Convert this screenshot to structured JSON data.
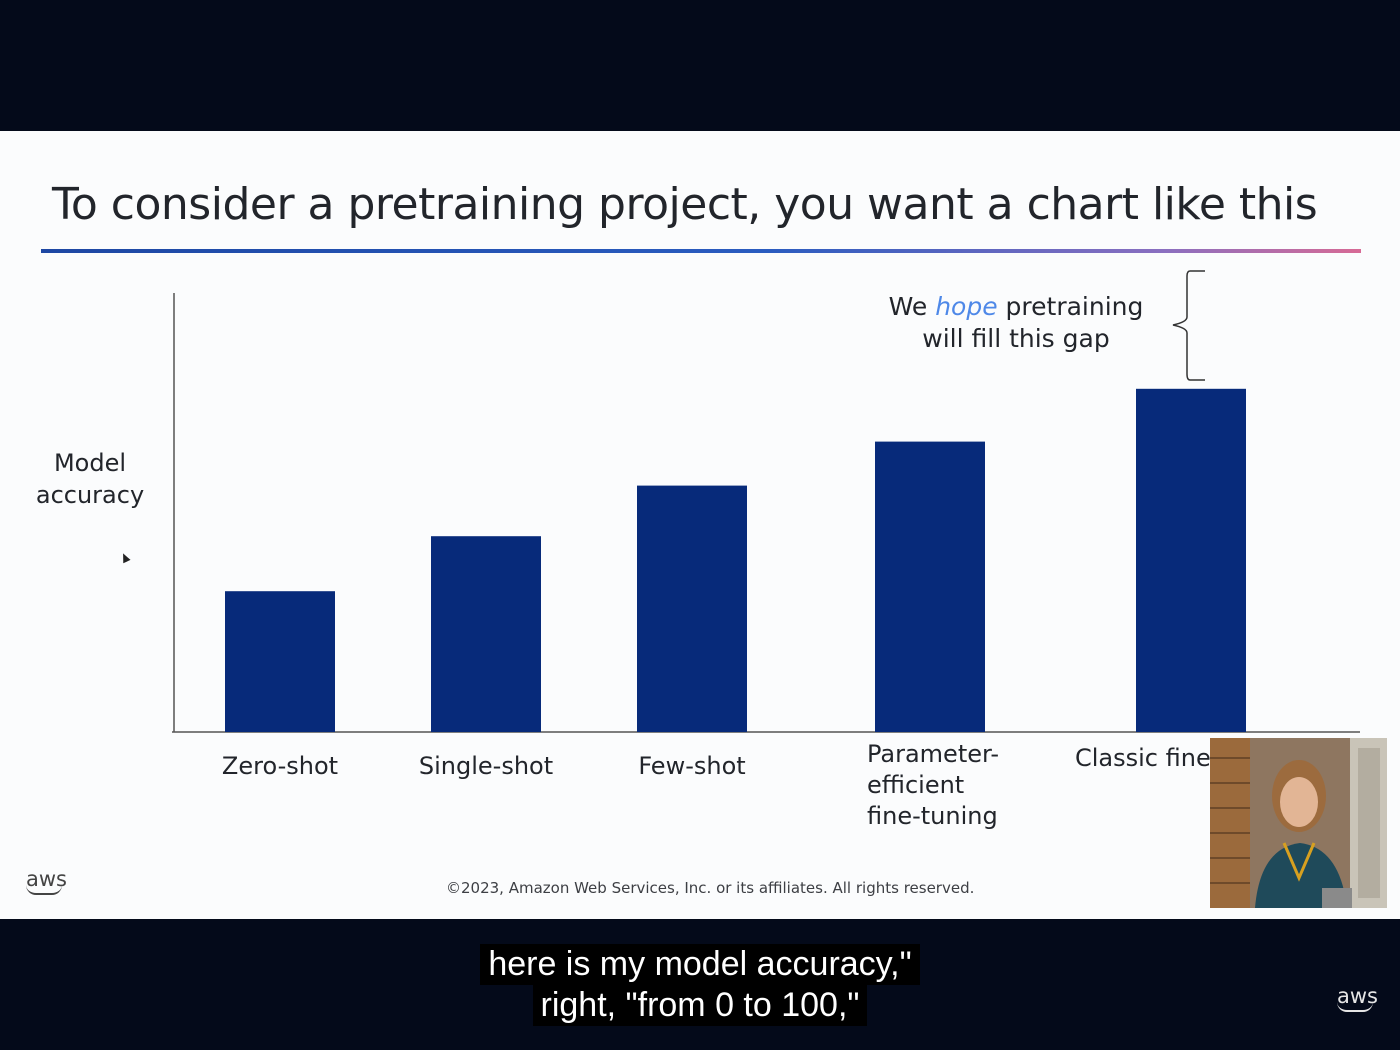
{
  "slide": {
    "title": "To consider a pretraining project, you want a chart like this",
    "annotation": {
      "line1_pre": "We ",
      "line1_em": "hope",
      "line1_post": " pretraining",
      "line2": "will fill this gap"
    },
    "logo_text": "aws",
    "copyright": "©2023, Amazon Web Services, Inc. or its affiliates. All rights reserved."
  },
  "chart_data": {
    "type": "bar",
    "title": "To consider a pretraining project, you want a chart like this",
    "xlabel": "",
    "ylabel": "Model accuracy",
    "categories": [
      "Zero-shot",
      "Single-shot",
      "Few-shot",
      "Parameter-\nefficient\nfine-tuning",
      "Classic fine-"
    ],
    "values": [
      32,
      44.5,
      56,
      66,
      78
    ],
    "ylim": [
      0,
      100
    ],
    "grid": false,
    "bar_color": "#072a7a",
    "annotation": "We hope pretraining will fill this gap"
  },
  "captions": {
    "line1": "here is my model accuracy,\"",
    "line2": "right, \"from 0 to 100,\""
  },
  "player": {
    "logo_text": "aws"
  },
  "colors": {
    "bar": "#072a7a",
    "hope_accent": "#4e88e8",
    "background": "#040a1a"
  }
}
